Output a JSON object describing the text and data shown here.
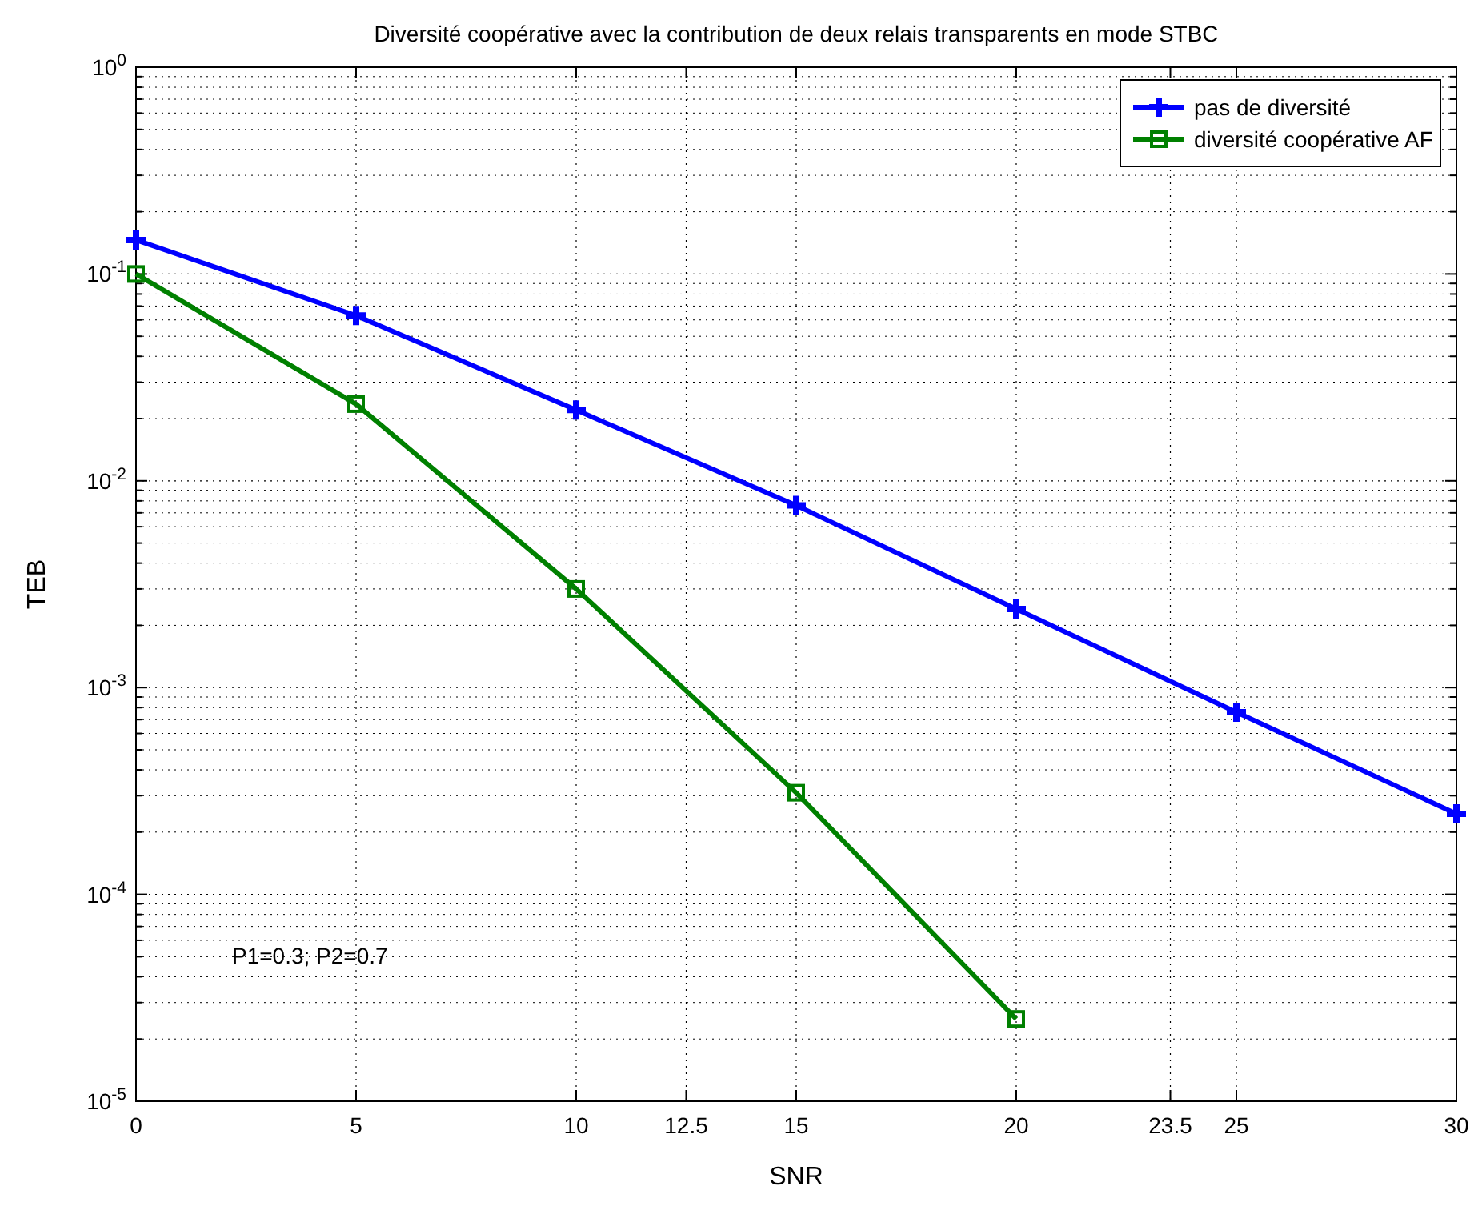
{
  "chart_data": {
    "type": "line",
    "title": "Diversité coopérative avec la contribution de deux relais transparents en mode STBC",
    "xlabel": "SNR",
    "ylabel": "TEB",
    "x": [
      0,
      5,
      10,
      15,
      20,
      25,
      30
    ],
    "series": [
      {
        "name": "pas de diversité",
        "color": "#0000ff",
        "marker": "cross",
        "values": [
          0.146,
          0.063,
          0.022,
          0.0076,
          0.0024,
          0.00076,
          0.000245
        ]
      },
      {
        "name": "diversité coopérative AF",
        "color": "#008000",
        "marker": "square",
        "values": [
          0.1,
          0.0235,
          0.003,
          0.00031,
          2.5e-05,
          null,
          null
        ]
      }
    ],
    "xlim": [
      0,
      30
    ],
    "xticks": [
      0,
      5,
      10,
      12.5,
      15,
      20,
      23.5,
      25,
      30
    ],
    "ylim": [
      1e-05,
      1
    ],
    "yticks": [
      {
        "value": 1e-05,
        "label": "10$^{-5}$"
      },
      {
        "value": 0.0001,
        "label": "10$^{-4}$"
      },
      {
        "value": 0.001,
        "label": "10$^{-3}$"
      },
      {
        "value": 0.01,
        "label": "10$^{-2}$"
      },
      {
        "value": 0.1,
        "label": "10$^{-1}$"
      },
      {
        "value": 1,
        "label": "10$^{0}$"
      }
    ],
    "log": "y",
    "grid": true,
    "legend": "top right",
    "line_style": "solid",
    "annotations": [
      "P1=0.3;  P2=0.7"
    ]
  }
}
